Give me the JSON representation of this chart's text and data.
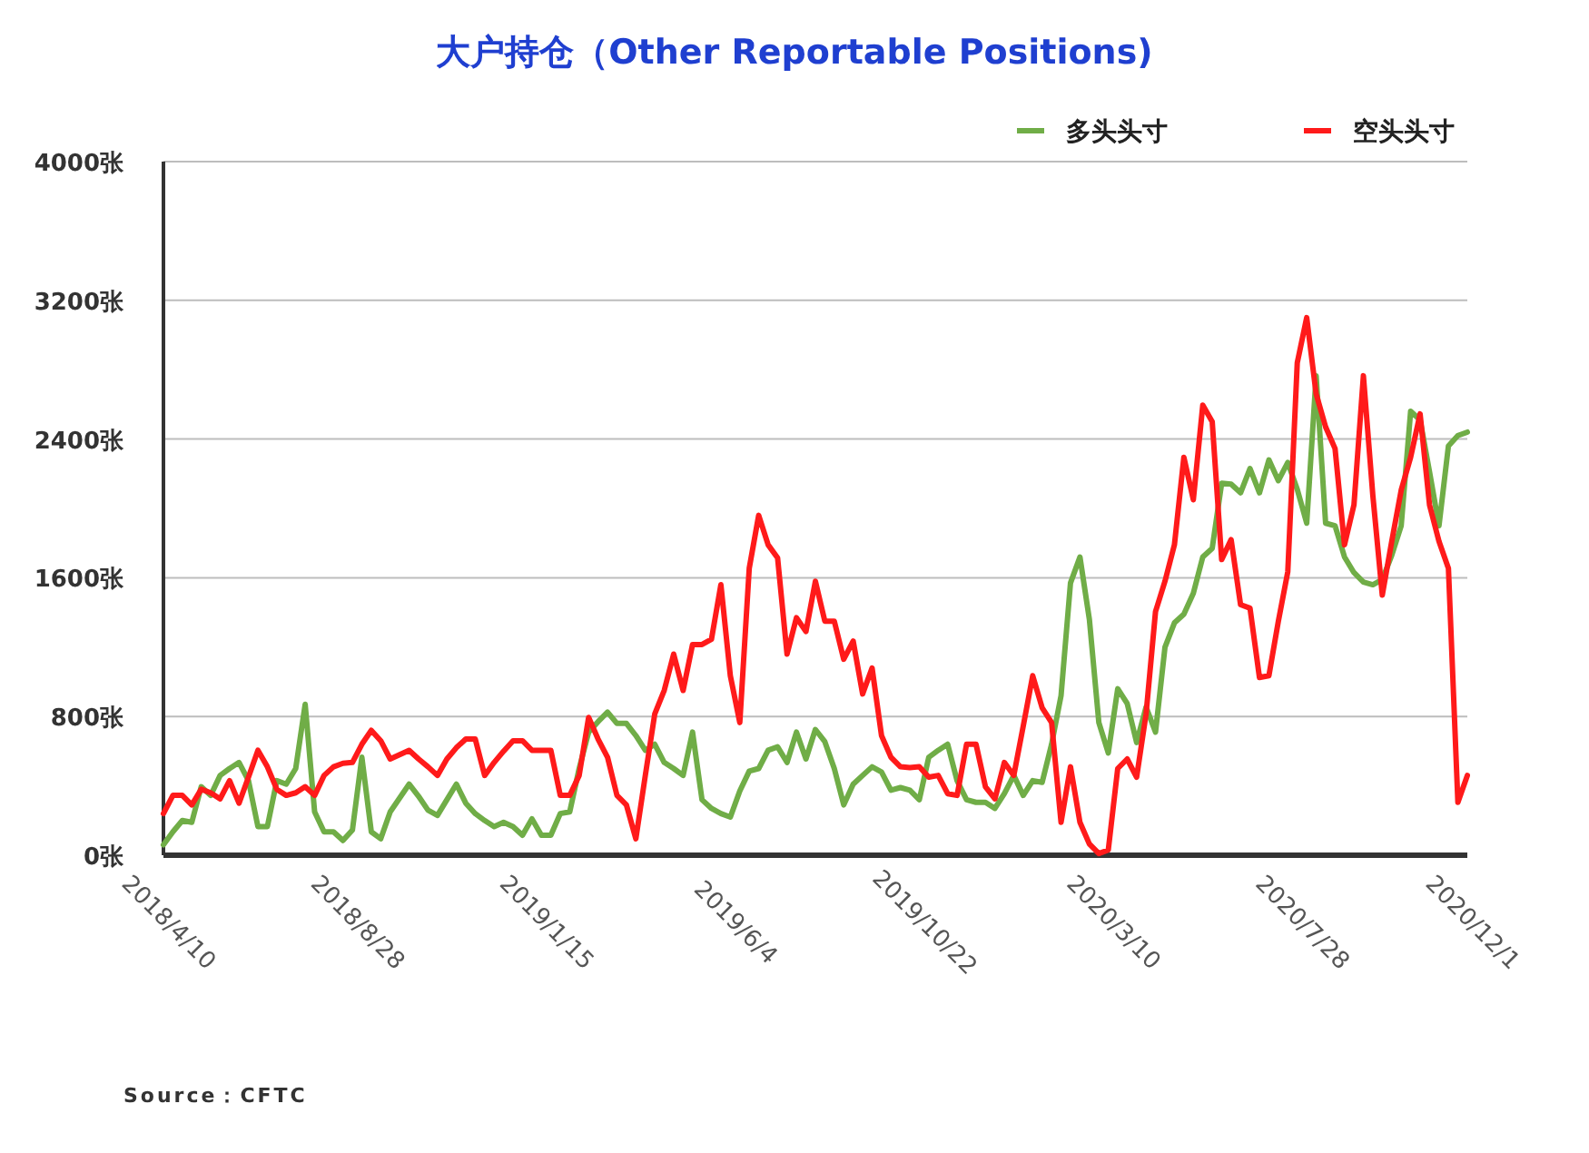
{
  "chart_data": {
    "type": "line",
    "title": "大户持仓（Other Reportable Positions)",
    "categories": [
      "2018/4/10",
      null,
      null,
      null,
      null,
      null,
      null,
      null,
      null,
      null,
      null,
      null,
      null,
      null,
      null,
      null,
      null,
      null,
      null,
      null,
      "2018/8/28",
      null,
      null,
      null,
      null,
      null,
      null,
      null,
      null,
      null,
      null,
      null,
      null,
      null,
      null,
      null,
      null,
      null,
      null,
      null,
      "2019/1/15",
      null,
      null,
      null,
      null,
      null,
      null,
      null,
      null,
      null,
      null,
      null,
      null,
      null,
      null,
      null,
      null,
      null,
      null,
      null,
      "2019/6/4",
      null,
      null,
      null,
      null,
      null,
      null,
      null,
      null,
      null,
      null,
      null,
      null,
      null,
      null,
      null,
      null,
      null,
      null,
      null,
      "2019/10/22",
      null,
      null,
      null,
      null,
      null,
      null,
      null,
      null,
      null,
      null,
      null,
      null,
      null,
      null,
      null,
      null,
      null,
      null,
      null,
      "2020/3/10",
      null,
      null,
      null,
      null,
      null,
      null,
      null,
      null,
      null,
      null,
      null,
      null,
      null,
      null,
      null,
      null,
      null,
      null,
      null,
      "2020/7/28",
      null,
      null,
      null,
      null,
      null,
      null,
      null,
      null,
      null,
      null,
      null,
      null,
      null,
      null,
      null,
      null,
      null,
      "2020/12/1"
    ],
    "series": [
      {
        "name": "多头头寸",
        "color": "#70ad47",
        "values": [
          60,
          135,
          200,
          190,
          395,
          345,
          460,
          500,
          535,
          430,
          165,
          165,
          430,
          410,
          500,
          870,
          250,
          135,
          135,
          85,
          145,
          565,
          135,
          95,
          250,
          330,
          410,
          340,
          260,
          230,
          320,
          410,
          300,
          240,
          200,
          165,
          190,
          165,
          115,
          210,
          115,
          115,
          240,
          250,
          500,
          710,
          770,
          825,
          760,
          760,
          690,
          605,
          640,
          535,
          500,
          460,
          710,
          320,
          270,
          240,
          220,
          370,
          485,
          500,
          605,
          625,
          535,
          710,
          555,
          725,
          655,
          500,
          290,
          410,
          460,
          510,
          480,
          375,
          390,
          375,
          320,
          565,
          605,
          640,
          430,
          320,
          305,
          305,
          270,
          355,
          460,
          345,
          430,
          420,
          640,
          920,
          1570,
          1720,
          1360,
          765,
          590,
          960,
          875,
          650,
          855,
          710,
          1200,
          1340,
          1390,
          1510,
          1720,
          1770,
          2145,
          2140,
          2090,
          2230,
          2090,
          2280,
          2160,
          2265,
          2110,
          1915,
          2765,
          1915,
          1900,
          1720,
          1630,
          1575,
          1560,
          1590,
          1730,
          1900,
          2560,
          2510,
          2210,
          1900,
          2360,
          2420,
          2440
        ]
      },
      {
        "name": "空头头寸",
        "color": "#ff1a1a",
        "values": [
          240,
          345,
          345,
          290,
          380,
          360,
          325,
          430,
          300,
          450,
          605,
          510,
          380,
          345,
          360,
          395,
          345,
          460,
          510,
          530,
          535,
          640,
          720,
          660,
          555,
          580,
          605,
          555,
          510,
          460,
          555,
          620,
          670,
          670,
          460,
          535,
          600,
          660,
          660,
          605,
          605,
          605,
          345,
          345,
          460,
          795,
          670,
          565,
          345,
          290,
          95,
          460,
          815,
          950,
          1160,
          950,
          1215,
          1215,
          1245,
          1560,
          1035,
          765,
          1655,
          1960,
          1790,
          1715,
          1160,
          1370,
          1290,
          1580,
          1350,
          1350,
          1130,
          1235,
          930,
          1080,
          690,
          565,
          510,
          505,
          510,
          450,
          460,
          355,
          345,
          640,
          640,
          395,
          325,
          535,
          460,
          745,
          1035,
          850,
          765,
          190,
          510,
          190,
          65,
          10,
          30,
          500,
          555,
          450,
          815,
          1405,
          1580,
          1790,
          2295,
          2050,
          2595,
          2500,
          1705,
          1820,
          1445,
          1425,
          1025,
          1035,
          1350,
          1635,
          2840,
          3100,
          2660,
          2470,
          2345,
          1790,
          2020,
          2765,
          2075,
          1500,
          1810,
          2105,
          2295,
          2545,
          2020,
          1810,
          1655,
          305,
          460
        ]
      }
    ],
    "ylim": [
      0,
      4000
    ],
    "yticks": [
      {
        "value": 0,
        "label": "0张"
      },
      {
        "value": 800,
        "label": "800张"
      },
      {
        "value": 1600,
        "label": "1600张"
      },
      {
        "value": 2400,
        "label": "2400张"
      },
      {
        "value": 3200,
        "label": "3200张"
      },
      {
        "value": 4000,
        "label": "4000张"
      }
    ],
    "grid": "y",
    "legend": "top right",
    "line_style": "solid",
    "marker": "none",
    "annotations": [
      "Source：CFTC"
    ]
  }
}
